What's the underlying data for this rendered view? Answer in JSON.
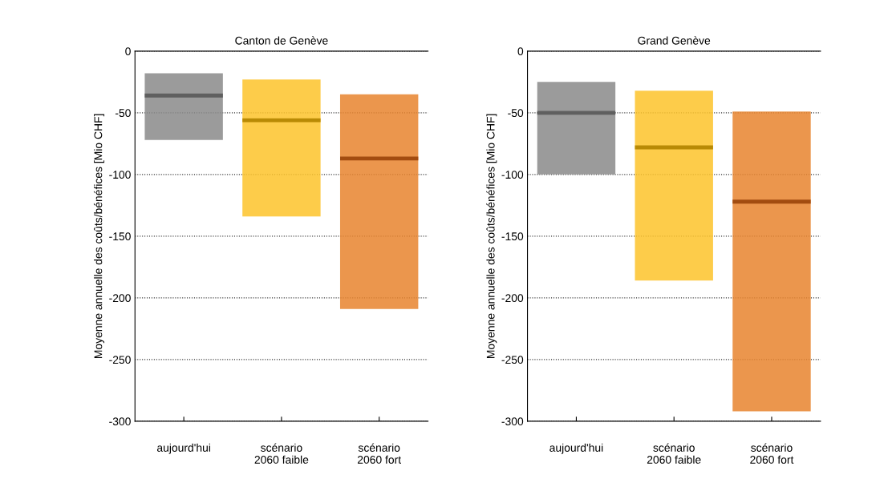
{
  "chart_data": [
    {
      "type": "bar",
      "title": "Canton de Genève",
      "ylabel": "Moyenne annuelle des coûts/bénéfices [Mio CHF]",
      "categories": [
        "aujourd'hui",
        "scénario\n2060 faible",
        "scénario\n2060 fort"
      ],
      "series": [
        {
          "type": "bar",
          "colors": [
            "#8a8a8a",
            "#fdc32a",
            "#e8842e"
          ],
          "base": [
            -72,
            -134,
            -209
          ],
          "values": [
            54,
            111,
            174
          ]
        },
        {
          "type": "bar",
          "colors": [
            "#5f5f5f",
            "#b98a05",
            "#a24c10"
          ],
          "base": [
            -36,
            -56,
            -87
          ],
          "values": [
            0,
            0,
            0
          ]
        }
      ],
      "ylim": [
        -300,
        0
      ],
      "yticks": [
        -300,
        -250,
        -200,
        -150,
        -100,
        -50,
        0
      ],
      "grid": "y"
    },
    {
      "type": "bar",
      "title": "Grand Genève",
      "ylabel": "Moyenne annuelle des coûts/bénéfices [Mio CHF]",
      "categories": [
        "aujourd'hui",
        "scénario\n2060 faible",
        "scénario\n2060 fort"
      ],
      "series": [
        {
          "type": "bar",
          "colors": [
            "#8a8a8a",
            "#fdc32a",
            "#e8842e"
          ],
          "base": [
            -100,
            -186,
            -292
          ],
          "values": [
            75,
            154,
            243
          ]
        },
        {
          "type": "bar",
          "colors": [
            "#5f5f5f",
            "#b98a05",
            "#a24c10"
          ],
          "base": [
            -50,
            -78,
            -122
          ],
          "values": [
            0,
            0,
            0
          ]
        }
      ],
      "ylim": [
        -300,
        0
      ],
      "yticks": [
        -300,
        -250,
        -200,
        -150,
        -100,
        -50,
        0
      ],
      "grid": "y"
    }
  ]
}
